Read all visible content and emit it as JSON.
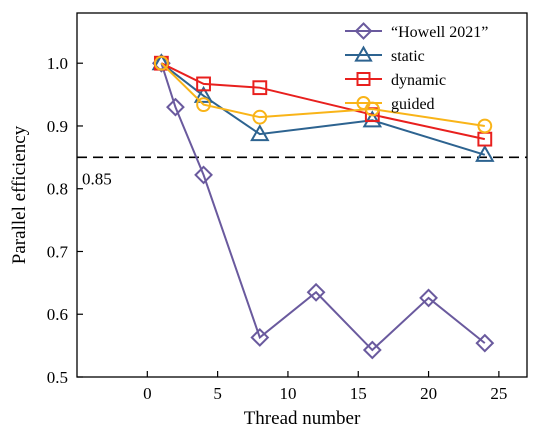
{
  "chart_data": {
    "type": "line",
    "xlabel": "Thread number",
    "ylabel": "Parallel efficiency",
    "xlim": [
      -5,
      27
    ],
    "ylim": [
      0.5,
      1.08
    ],
    "xticks": [
      0,
      5,
      10,
      15,
      20,
      25
    ],
    "yticks": [
      0.5,
      0.6,
      0.7,
      0.8,
      0.9,
      1.0
    ],
    "ytick_labels": [
      "0.5",
      "0.6",
      "0.7",
      "0.8",
      "0.9",
      "1.0"
    ],
    "grid": false,
    "legend_position": "top-right",
    "reference_line": {
      "y": 0.85,
      "label": "0.85",
      "style": "dashed"
    },
    "series": [
      {
        "name": "“Howell 2021”",
        "color": "#6a5a9e",
        "marker": "diamond",
        "x": [
          1,
          2,
          4,
          8,
          12,
          16,
          20,
          24
        ],
        "y": [
          1.0,
          0.93,
          0.822,
          0.563,
          0.635,
          0.543,
          0.626,
          0.554
        ]
      },
      {
        "name": "static",
        "color": "#2d6390",
        "marker": "triangle",
        "x": [
          1,
          4,
          8,
          16,
          24
        ],
        "y": [
          1.0,
          0.948,
          0.887,
          0.909,
          0.854
        ]
      },
      {
        "name": "dynamic",
        "color": "#e8201e",
        "marker": "square",
        "x": [
          1,
          4,
          8,
          16,
          24
        ],
        "y": [
          1.0,
          0.967,
          0.961,
          0.918,
          0.879
        ]
      },
      {
        "name": "guided",
        "color": "#f9b418",
        "marker": "circle",
        "x": [
          1,
          4,
          8,
          16,
          24
        ],
        "y": [
          1.0,
          0.934,
          0.914,
          0.927,
          0.9
        ]
      }
    ]
  }
}
